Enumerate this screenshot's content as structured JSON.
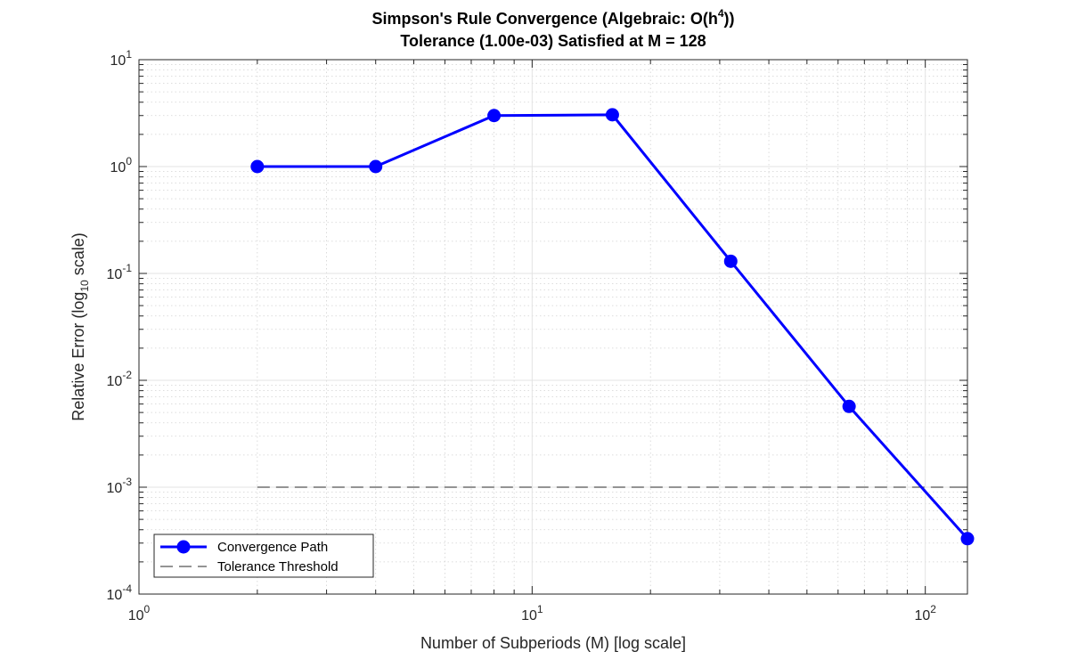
{
  "chart_data": {
    "type": "line",
    "title": "Simpson's Rule Convergence (Algebraic: O(h^4))",
    "title_line1_prefix": "Simpson's Rule Convergence (Algebraic: O(h",
    "title_line1_superscript": "4",
    "title_line1_suffix": "))",
    "subtitle": "Tolerance (1.00e-03) Satisfied at M = 128",
    "xlabel": "Number of Subperiods (M) [log scale]",
    "ylabel_prefix": "Relative Error (log",
    "ylabel_subscript": "10",
    "ylabel_suffix": " scale)",
    "x_scale": "log",
    "y_scale": "log",
    "xlim": [
      1,
      128
    ],
    "ylim": [
      0.0001,
      10
    ],
    "x_ticks": [
      {
        "value": 1,
        "base": "10",
        "exp": "0"
      },
      {
        "value": 10,
        "base": "10",
        "exp": "1"
      },
      {
        "value": 100,
        "base": "10",
        "exp": "2"
      }
    ],
    "y_ticks": [
      {
        "value": 10,
        "base": "10",
        "exp": "1"
      },
      {
        "value": 1,
        "base": "10",
        "exp": "0"
      },
      {
        "value": 0.1,
        "base": "10",
        "exp": "-1"
      },
      {
        "value": 0.01,
        "base": "10",
        "exp": "-2"
      },
      {
        "value": 0.001,
        "base": "10",
        "exp": "-3"
      },
      {
        "value": 0.0001,
        "base": "10",
        "exp": "-4"
      }
    ],
    "grid": true,
    "series": [
      {
        "name": "Convergence Path",
        "color": "#0000ff",
        "style": "solid-with-circle-markers",
        "x": [
          2,
          4,
          8,
          16,
          32,
          64,
          128
        ],
        "y": [
          1.0,
          1.0,
          3.0,
          3.05,
          0.13,
          0.0057,
          0.00033
        ]
      },
      {
        "name": "Tolerance Threshold",
        "color": "#555555",
        "style": "dashed",
        "x": [
          2,
          128
        ],
        "y": [
          0.001,
          0.001
        ]
      }
    ],
    "legend": {
      "placement": "bottom-left",
      "entries": [
        "Convergence Path",
        "Tolerance Threshold"
      ]
    }
  }
}
